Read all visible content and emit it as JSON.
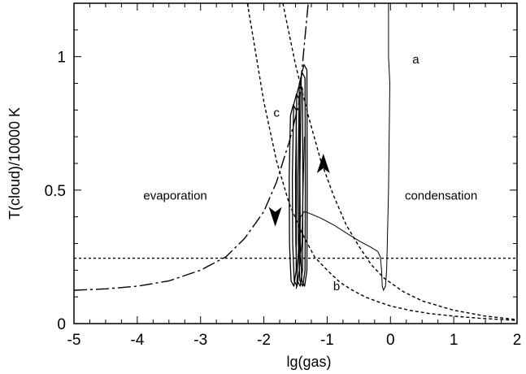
{
  "chart_data": {
    "type": "line",
    "title": "",
    "xlabel": "lg(gas)",
    "ylabel": "T(cloud)/10000 K",
    "xlim": [
      -5,
      2
    ],
    "ylim": [
      0,
      1.2
    ],
    "x_ticks": [
      -5,
      -4,
      -3,
      -2,
      -1,
      0,
      1,
      2
    ],
    "x_tick_labels": [
      "-5",
      "-4",
      "-3",
      "-2",
      "-1",
      "0",
      "1",
      "2"
    ],
    "y_ticks": [
      0,
      0.5,
      1
    ],
    "y_tick_labels": [
      "0",
      "0.5",
      "1"
    ],
    "grid": false,
    "annotations": [
      {
        "text": "a",
        "x": 0.4,
        "y": 0.99
      },
      {
        "text": "b",
        "x": -0.85,
        "y": 0.14
      },
      {
        "text": "c",
        "x": -1.8,
        "y": 0.79
      },
      {
        "text": "evaporation",
        "x": -3.4,
        "y": 0.48
      },
      {
        "text": "condensation",
        "x": 0.8,
        "y": 0.48
      }
    ],
    "series": [
      {
        "style": "dotted-horizontal",
        "x": [
          -5,
          2
        ],
        "y": [
          0.245,
          0.245
        ]
      },
      {
        "style": "dashed-decreasing-outer",
        "x": [
          -2.26,
          -2.0,
          -1.8,
          -1.6,
          -1.4,
          -1.2,
          -1.0,
          -0.8,
          -0.6,
          -0.4,
          -0.2,
          0.0,
          0.3,
          0.6,
          1.0,
          1.4,
          2.0
        ],
        "y": [
          1.2,
          0.83,
          0.61,
          0.45,
          0.34,
          0.25,
          0.2,
          0.155,
          0.125,
          0.1,
          0.082,
          0.066,
          0.05,
          0.038,
          0.028,
          0.02,
          0.012
        ]
      },
      {
        "style": "dashed-decreasing-inner",
        "x": [
          -1.7,
          -1.5,
          -1.3,
          -1.1,
          -0.9,
          -0.7,
          -0.5,
          -0.3,
          -0.1,
          0.2,
          0.5,
          1.0,
          1.5,
          2.0
        ],
        "y": [
          1.2,
          0.97,
          0.78,
          0.61,
          0.48,
          0.37,
          0.29,
          0.22,
          0.17,
          0.12,
          0.085,
          0.05,
          0.028,
          0.015
        ]
      },
      {
        "style": "long-dash-rising",
        "x": [
          -5,
          -4.5,
          -4.0,
          -3.5,
          -3.0,
          -2.6,
          -2.3,
          -2.0,
          -1.8,
          -1.6,
          -1.45,
          -1.3
        ],
        "y": [
          0.125,
          0.13,
          0.14,
          0.16,
          0.2,
          0.25,
          0.32,
          0.42,
          0.53,
          0.68,
          0.82,
          1.2
        ]
      },
      {
        "style": "solid-trajectory-a",
        "x": [
          -0.03,
          -0.03,
          -0.01,
          -0.03,
          -0.05,
          -0.06,
          -0.08,
          -0.11,
          -0.13,
          -0.14,
          -0.16,
          -0.2,
          -0.3,
          -0.5,
          -0.7,
          -0.9,
          -1.1,
          -1.25,
          -1.36,
          -1.42,
          -1.45,
          -1.47,
          -1.48,
          -1.49,
          -1.47,
          -1.44,
          -1.4,
          -1.38,
          -1.36
        ],
        "y": [
          1.2,
          1.0,
          0.9,
          0.5,
          0.3,
          0.2,
          0.14,
          0.125,
          0.14,
          0.2,
          0.25,
          0.27,
          0.285,
          0.31,
          0.34,
          0.37,
          0.395,
          0.41,
          0.42,
          0.4,
          0.3,
          0.2,
          0.15,
          0.13,
          0.15,
          0.2,
          0.3,
          0.5,
          0.7
        ]
      },
      {
        "style": "limit-cycle-loops",
        "x": [
          -1.58,
          -1.53,
          -1.48,
          -1.44,
          -1.41
        ],
        "y": [
          0.78,
          0.82,
          0.86,
          0.9,
          0.93
        ]
      }
    ]
  }
}
